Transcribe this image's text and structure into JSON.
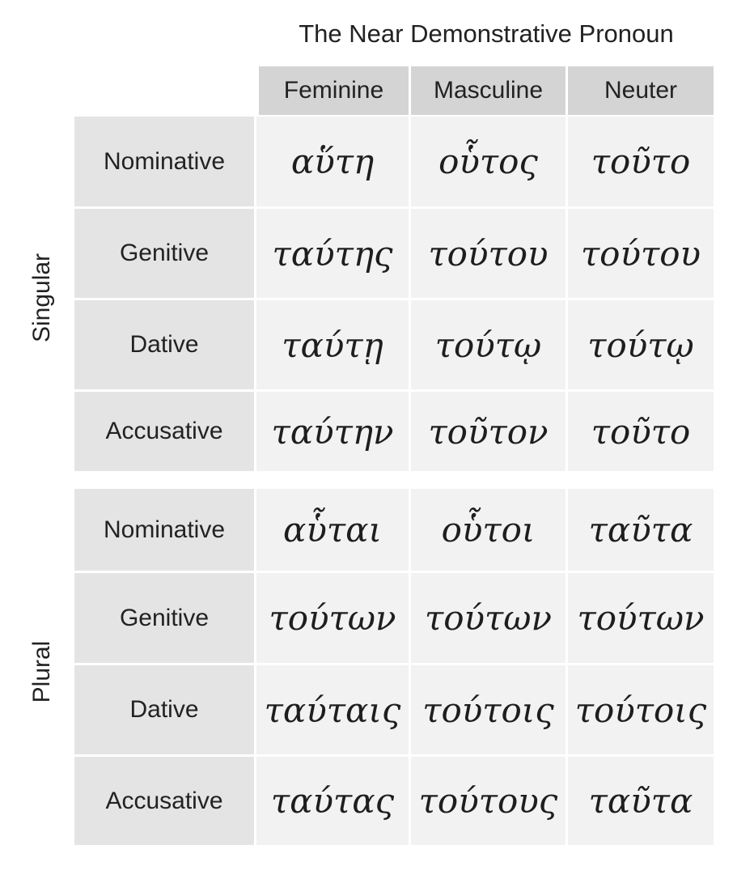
{
  "title": "The Near Demonstrative Pronoun",
  "columns": [
    "Feminine",
    "Masculine",
    "Neuter"
  ],
  "groups": [
    {
      "label": "Singular",
      "rows": [
        {
          "case": "Nominative",
          "forms": [
            "αὕτη",
            "οὗτος",
            "τοῦτο"
          ]
        },
        {
          "case": "Genitive",
          "forms": [
            "ταύτης",
            "τούτου",
            "τούτου"
          ]
        },
        {
          "case": "Dative",
          "forms": [
            "ταύτῃ",
            "τούτῳ",
            "τούτῳ"
          ]
        },
        {
          "case": "Accusative",
          "forms": [
            "ταύτην",
            "τοῦτον",
            "τοῦτο"
          ]
        }
      ]
    },
    {
      "label": "Plural",
      "rows": [
        {
          "case": "Nominative",
          "forms": [
            "αὗται",
            "οὗτοι",
            "ταῦτα"
          ]
        },
        {
          "case": "Genitive",
          "forms": [
            "τούτων",
            "τούτων",
            "τούτων"
          ]
        },
        {
          "case": "Dative",
          "forms": [
            "ταύταις",
            "τούτοις",
            "τούτοις"
          ]
        },
        {
          "case": "Accusative",
          "forms": [
            "ταύτας",
            "τούτους",
            "ταῦτα"
          ]
        }
      ]
    }
  ]
}
